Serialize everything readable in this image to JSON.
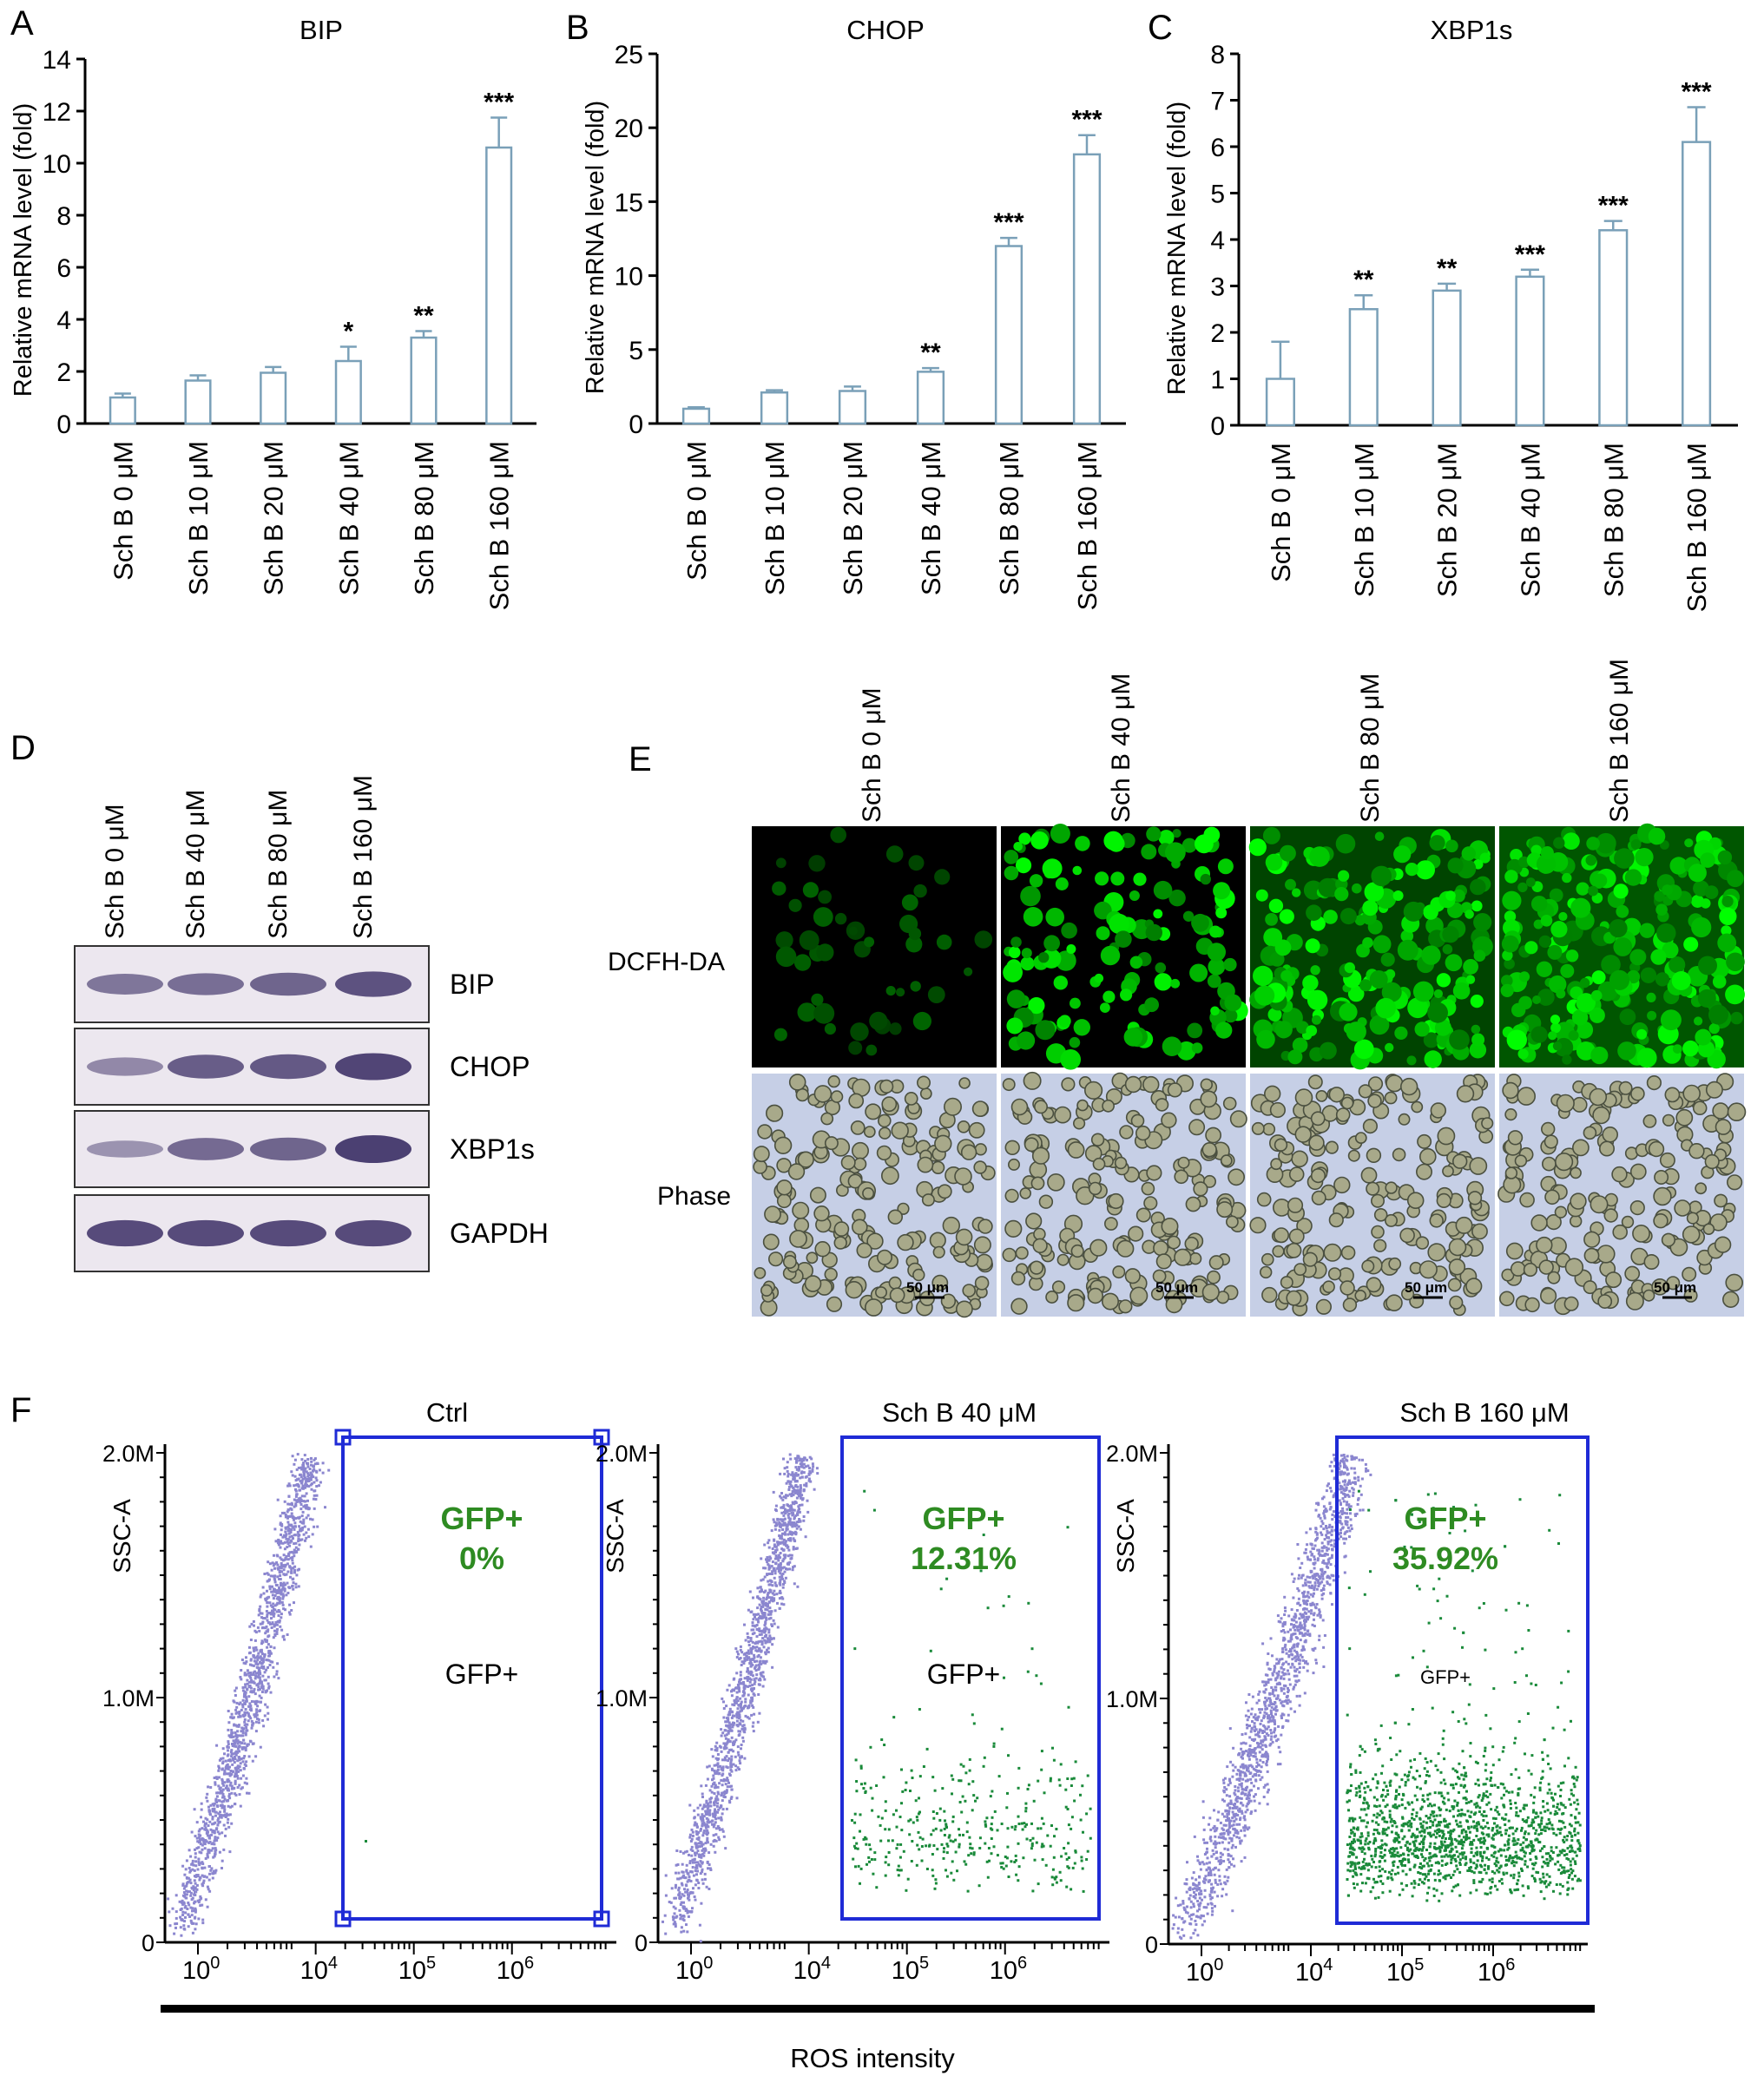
{
  "chart_data": [
    {
      "type": "bar",
      "panel": "A",
      "title": "BIP",
      "ylabel": "Relative mRNA level (fold)",
      "categories": [
        "Sch B 0 μM",
        "Sch B 10 μM",
        "Sch B 20 μM",
        "Sch B 40 μM",
        "Sch B 80 μM",
        "Sch B 160 μM"
      ],
      "values": [
        1.0,
        1.65,
        1.95,
        2.4,
        3.3,
        10.6
      ],
      "errors": [
        0.15,
        0.2,
        0.22,
        0.55,
        0.25,
        1.15
      ],
      "significance": [
        "",
        "",
        "",
        "*",
        "**",
        "***"
      ],
      "ylim": [
        0,
        14
      ],
      "yticks": [
        "0",
        "2",
        "4",
        "6",
        "8",
        "10",
        "12",
        "14"
      ]
    },
    {
      "type": "bar",
      "panel": "B",
      "title": "CHOP",
      "ylabel": "Relative mRNA level (fold)",
      "categories": [
        "Sch B 0 μM",
        "Sch B 10 μM",
        "Sch B 20 μM",
        "Sch B 40 μM",
        "Sch B 80 μM",
        "Sch B 160 μM"
      ],
      "values": [
        1.0,
        2.1,
        2.2,
        3.5,
        12.0,
        18.2
      ],
      "errors": [
        0.1,
        0.15,
        0.3,
        0.25,
        0.55,
        1.3
      ],
      "significance": [
        "",
        "",
        "",
        "**",
        "***",
        "***"
      ],
      "ylim": [
        0,
        25
      ],
      "yticks": [
        "0",
        "5",
        "10",
        "15",
        "20",
        "25"
      ]
    },
    {
      "type": "bar",
      "panel": "C",
      "title": "XBP1s",
      "ylabel": "Relative mRNA level (fold)",
      "categories": [
        "Sch B 0 μM",
        "Sch B 10 μM",
        "Sch B 20 μM",
        "Sch B 40 μM",
        "Sch B 80 μM",
        "Sch B 160 μM"
      ],
      "values": [
        1.0,
        2.5,
        2.9,
        3.2,
        4.2,
        6.1
      ],
      "errors": [
        0.8,
        0.3,
        0.15,
        0.15,
        0.2,
        0.75
      ],
      "significance": [
        "",
        "**",
        "**",
        "***",
        "***",
        "***"
      ],
      "ylim": [
        0,
        8
      ],
      "yticks": [
        "0",
        "1",
        "2",
        "3",
        "4",
        "5",
        "6",
        "7",
        "8"
      ]
    }
  ],
  "panel_d": {
    "letter": "D",
    "lanes": [
      "Sch B 0 μM",
      "Sch B 40 μM",
      "Sch B 80 μM",
      "Sch B 160 μM"
    ],
    "bands": [
      {
        "label": "BIP",
        "intensity": [
          0.55,
          0.62,
          0.7,
          0.85
        ]
      },
      {
        "label": "CHOP",
        "intensity": [
          0.4,
          0.75,
          0.8,
          0.95
        ]
      },
      {
        "label": "XBP1s",
        "intensity": [
          0.3,
          0.65,
          0.7,
          1.0
        ]
      },
      {
        "label": "GAPDH",
        "intensity": [
          0.9,
          0.9,
          0.9,
          0.9
        ]
      }
    ]
  },
  "panel_e": {
    "letter": "E",
    "columns": [
      "Sch B 0 μM",
      "Sch B 40 μM",
      "Sch B 80 μM",
      "Sch B 160 μM"
    ],
    "rows": [
      "DCFH-DA",
      "Phase"
    ],
    "fluorescence_level": [
      0.05,
      0.45,
      0.75,
      0.95
    ],
    "scale_bar": "50 μm"
  },
  "panel_f": {
    "letter": "F",
    "plots": [
      {
        "title": "Ctrl",
        "gate_label": "GFP+",
        "pct_label": "GFP+",
        "pct_value": "0%"
      },
      {
        "title": "Sch B 40 μM",
        "gate_label": "GFP+",
        "pct_label": "GFP+",
        "pct_value": "12.31%"
      },
      {
        "title": "Sch B 160 μM",
        "gate_label": "GFP+",
        "pct_label": "GFP+",
        "pct_value": "35.92%"
      }
    ],
    "ylabel": "SSC-A",
    "yticks": [
      "0",
      "1.0M",
      "2.0M"
    ],
    "xticks": [
      "0",
      "4",
      "5",
      "6"
    ],
    "xlabel": "ROS intensity",
    "colors": {
      "population": "#8b86cf",
      "gated": "#1a8a3a",
      "gate_box": "#1f2bd6",
      "pct_text": "#2e8b22"
    }
  }
}
